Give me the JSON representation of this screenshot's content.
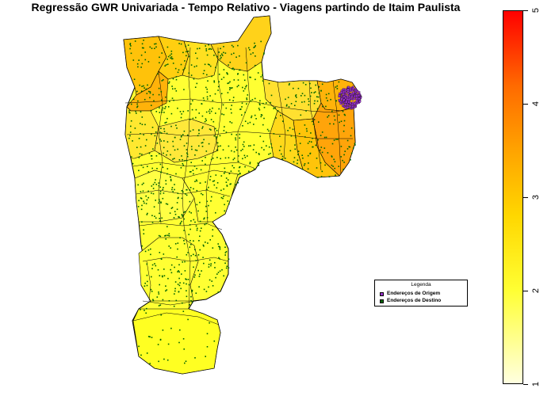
{
  "title": "Regressão GWR Univariada - Tempo Relativo - Viagens partindo de Itaim Paulista",
  "legend": {
    "title": "Legenda",
    "items": [
      {
        "label": "Endereços de Origem",
        "color": "#9932cc"
      },
      {
        "label": "Endereços de Destino",
        "color": "#006400"
      }
    ]
  },
  "colorbar": {
    "ticks": [
      "1",
      "2",
      "3",
      "4",
      "5"
    ],
    "range": [
      1,
      5
    ],
    "colors": [
      "#ffffe0",
      "#ffff33",
      "#ffd700",
      "#ffa500",
      "#ff6a00",
      "#ff0000"
    ]
  }
}
